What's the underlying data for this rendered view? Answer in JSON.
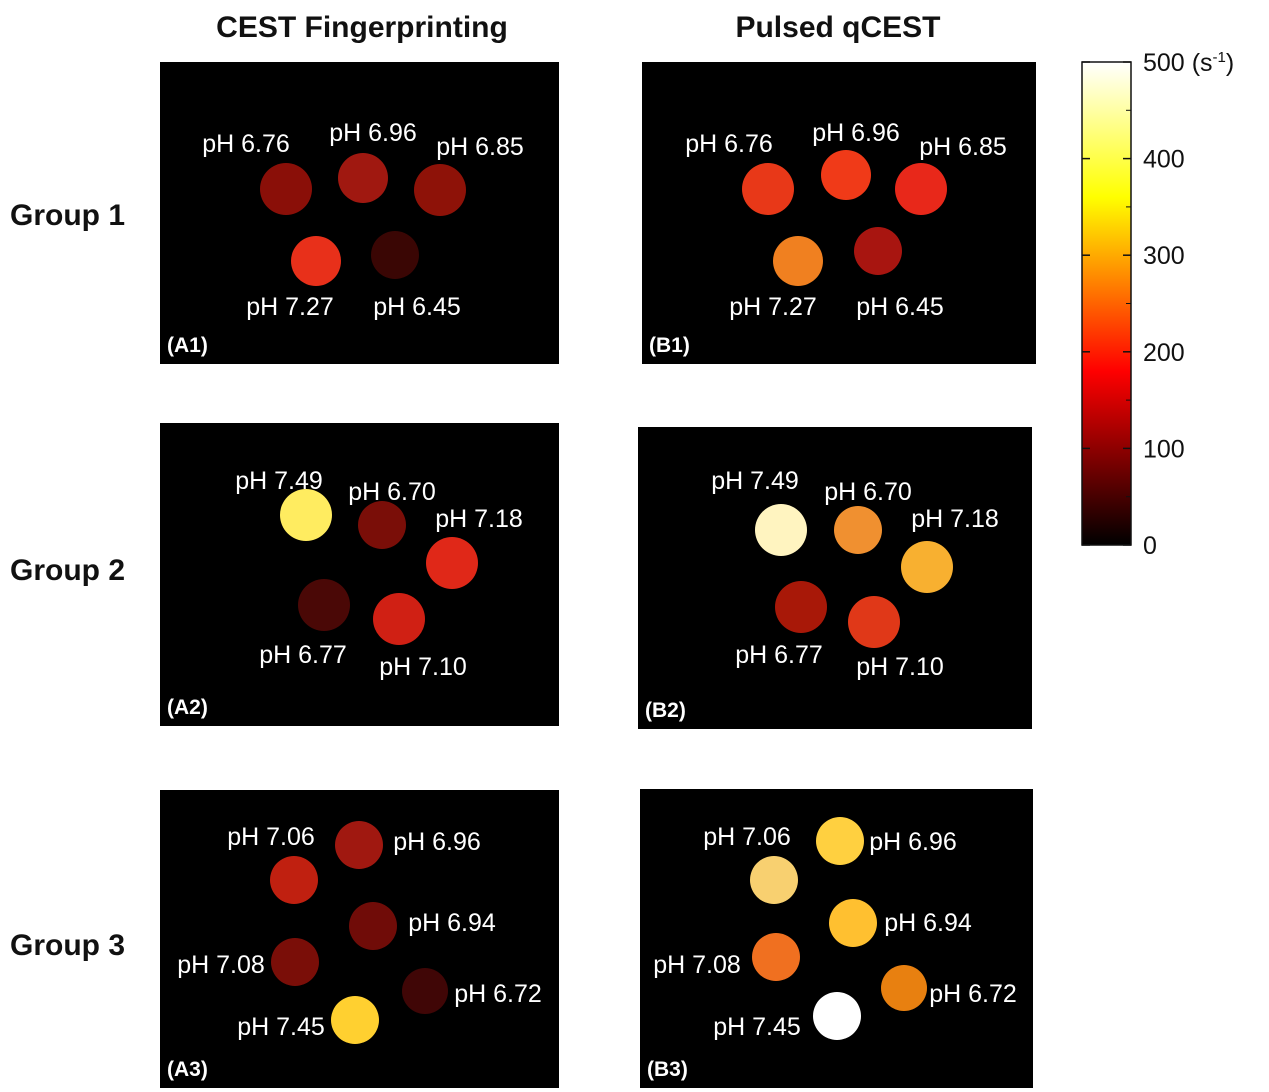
{
  "columns": [
    {
      "title": "CEST Fingerprinting"
    },
    {
      "title": "Pulsed qCEST"
    }
  ],
  "groups": [
    {
      "label": "Group 1",
      "panels": [
        {
          "label": "(A1)",
          "vials": [
            "pH 6.76",
            "pH 6.96",
            "pH 6.85",
            "pH 7.27",
            "pH 6.45"
          ]
        },
        {
          "label": "(B1)",
          "vials": [
            "pH 6.76",
            "pH 6.96",
            "pH 6.85",
            "pH 7.27",
            "pH 6.45"
          ]
        }
      ]
    },
    {
      "label": "Group 2",
      "panels": [
        {
          "label": "(A2)",
          "vials": [
            "pH 7.49",
            "pH 6.70",
            "pH 7.18",
            "pH 6.77",
            "pH 7.10"
          ]
        },
        {
          "label": "(B2)",
          "vials": [
            "pH 7.49",
            "pH 6.70",
            "pH 7.18",
            "pH 6.77",
            "pH 7.10"
          ]
        }
      ]
    },
    {
      "label": "Group 3",
      "panels": [
        {
          "label": "(A3)",
          "vials": [
            "pH 7.06",
            "pH 6.96",
            "pH 6.94",
            "pH 7.08",
            "pH 6.72",
            "pH 7.45"
          ]
        },
        {
          "label": "(B3)",
          "vials": [
            "pH 7.06",
            "pH 6.96",
            "pH 6.94",
            "pH 7.08",
            "pH 6.72",
            "pH 7.45"
          ]
        }
      ]
    }
  ],
  "colorbar": {
    "ticks": [
      0,
      100,
      200,
      300,
      400,
      500
    ],
    "unit_open": "(s",
    "unit_exponent": "-1",
    "unit_close": ")"
  }
}
